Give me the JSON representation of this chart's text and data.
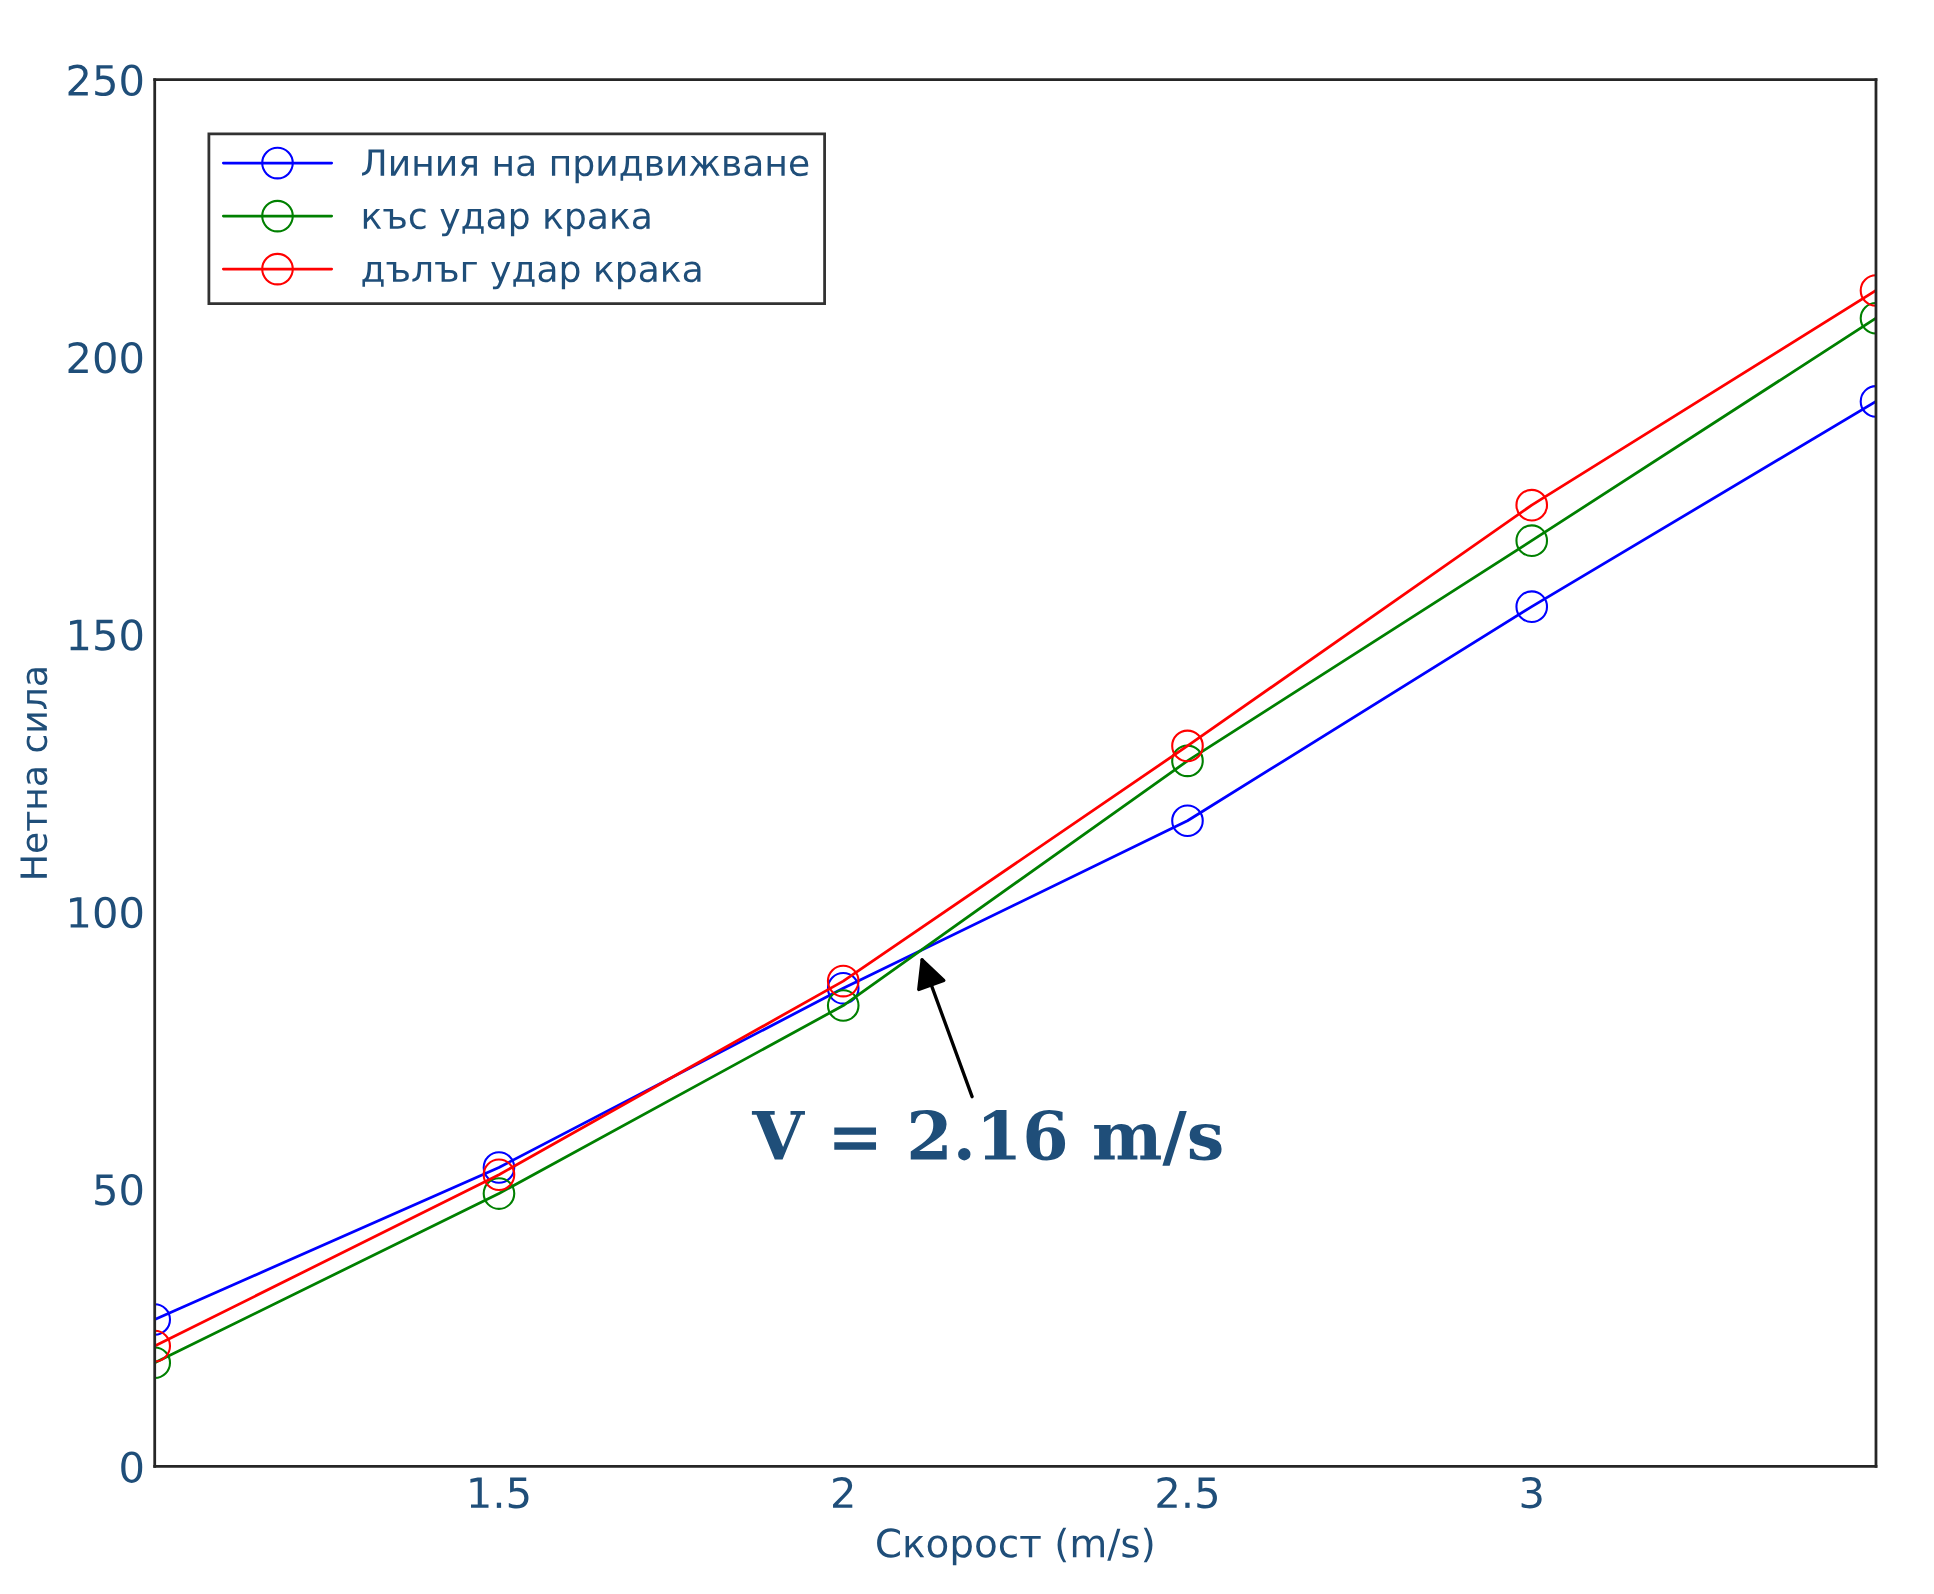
{
  "chart_data": {
    "type": "line",
    "xlabel": "Скорост (m/s)",
    "ylabel": "Нетна сила",
    "x": [
      1.0,
      1.5,
      2.0,
      2.5,
      3.0,
      3.5
    ],
    "series": [
      {
        "name": "Линия на придвижване",
        "color": "#0000ff",
        "values": [
          26.5,
          53.9,
          86.2,
          116.4,
          155,
          192
        ]
      },
      {
        "name": "къс удар крака",
        "color": "#008000",
        "values": [
          18.7,
          49.2,
          83.1,
          127.2,
          166.9,
          207
        ]
      },
      {
        "name": "дълъг удар крака",
        "color": "#ff0000",
        "values": [
          21.7,
          52.6,
          87.5,
          129.9,
          173.3,
          212
        ]
      }
    ],
    "annotations": [
      {
        "text": "V = 2.16 m/s",
        "x": 2.11,
        "y": 92.9
      }
    ],
    "xlim": [
      1.0,
      3.5
    ],
    "xticks": [
      {
        "value": 1.0,
        "label": null
      },
      1.5,
      2,
      2.5,
      3
    ],
    "ylim": [
      0,
      250
    ],
    "yticks": [
      0,
      50,
      100,
      150,
      200,
      250
    ],
    "grid": false,
    "legend": "top left",
    "marker": "circle",
    "line_style": "solid"
  }
}
